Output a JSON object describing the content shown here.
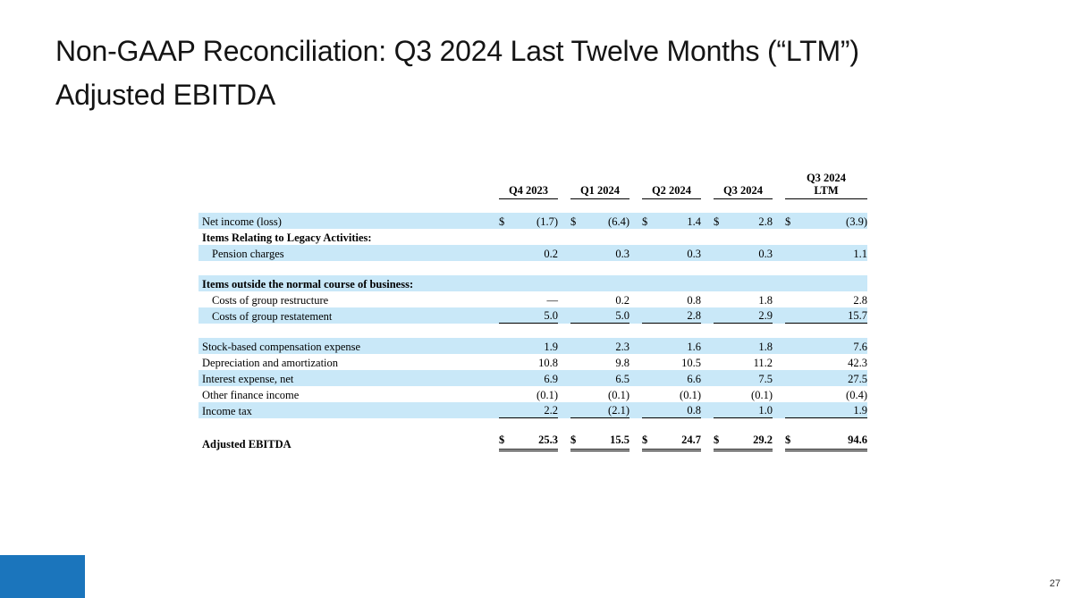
{
  "slide": {
    "title_line1": "Non-GAAP Reconciliation: Q3 2024 Last Twelve Months (“LTM”)",
    "title_line2": "Adjusted EBITDA",
    "page_number": "27",
    "accent_color": "#1B75BC",
    "stripe_color": "#C9E8F8"
  },
  "table": {
    "currency_symbol": "$",
    "columns": [
      {
        "label_lines": [
          "Q4 2023"
        ],
        "wide": false
      },
      {
        "label_lines": [
          "Q1 2024"
        ],
        "wide": false
      },
      {
        "label_lines": [
          "Q2 2024"
        ],
        "wide": false
      },
      {
        "label_lines": [
          "Q3 2024"
        ],
        "wide": false
      },
      {
        "label_lines": [
          "Q3 2024",
          "LTM"
        ],
        "wide": true
      }
    ],
    "rows": [
      {
        "label": "Net income (loss)",
        "indent": 0,
        "bold": false,
        "dollar": true,
        "values": [
          "(1.7)",
          "(6.4)",
          "1.4",
          "2.8",
          "(3.9)"
        ],
        "stripe": true
      },
      {
        "label": "Items Relating to Legacy Activities:",
        "indent": 0,
        "bold": true,
        "values": null,
        "stripe": false
      },
      {
        "label": "Pension charges",
        "indent": 1,
        "bold": false,
        "dollar": false,
        "values": [
          "0.2",
          "0.3",
          "0.3",
          "0.3",
          "1.1"
        ],
        "stripe": true
      },
      {
        "type": "spacer",
        "stripe": false
      },
      {
        "label": "Items outside the normal course of business:",
        "indent": 0,
        "bold": true,
        "values": null,
        "stripe": true
      },
      {
        "label": "Costs of group restructure",
        "indent": 1,
        "bold": false,
        "dollar": false,
        "values": [
          "—",
          "0.2",
          "0.8",
          "1.8",
          "2.8"
        ],
        "stripe": false
      },
      {
        "label": "Costs of group restatement",
        "indent": 1,
        "bold": false,
        "dollar": false,
        "values": [
          "5.0",
          "5.0",
          "2.8",
          "2.9",
          "15.7"
        ],
        "stripe": true,
        "underline": "single"
      },
      {
        "type": "spacer",
        "stripe": false
      },
      {
        "label": "Stock-based compensation expense",
        "indent": 0,
        "bold": false,
        "dollar": false,
        "values": [
          "1.9",
          "2.3",
          "1.6",
          "1.8",
          "7.6"
        ],
        "stripe": true
      },
      {
        "label": "Depreciation and amortization",
        "indent": 0,
        "bold": false,
        "dollar": false,
        "values": [
          "10.8",
          "9.8",
          "10.5",
          "11.2",
          "42.3"
        ],
        "stripe": false
      },
      {
        "label": "Interest expense, net",
        "indent": 0,
        "bold": false,
        "dollar": false,
        "values": [
          "6.9",
          "6.5",
          "6.6",
          "7.5",
          "27.5"
        ],
        "stripe": true
      },
      {
        "label": "Other finance income",
        "indent": 0,
        "bold": false,
        "dollar": false,
        "values": [
          "(0.1)",
          "(0.1)",
          "(0.1)",
          "(0.1)",
          "(0.4)"
        ],
        "stripe": false
      },
      {
        "label": "Income tax",
        "indent": 0,
        "bold": false,
        "dollar": false,
        "values": [
          "2.2",
          "(2.1)",
          "0.8",
          "1.0",
          "1.9"
        ],
        "stripe": true,
        "underline": "single"
      },
      {
        "type": "spacer",
        "stripe": false
      },
      {
        "label": "Adjusted EBITDA",
        "indent": 0,
        "bold": true,
        "dollar": true,
        "values": [
          "25.3",
          "15.5",
          "24.7",
          "29.2",
          "94.6"
        ],
        "stripe": false,
        "underline": "double"
      }
    ]
  }
}
